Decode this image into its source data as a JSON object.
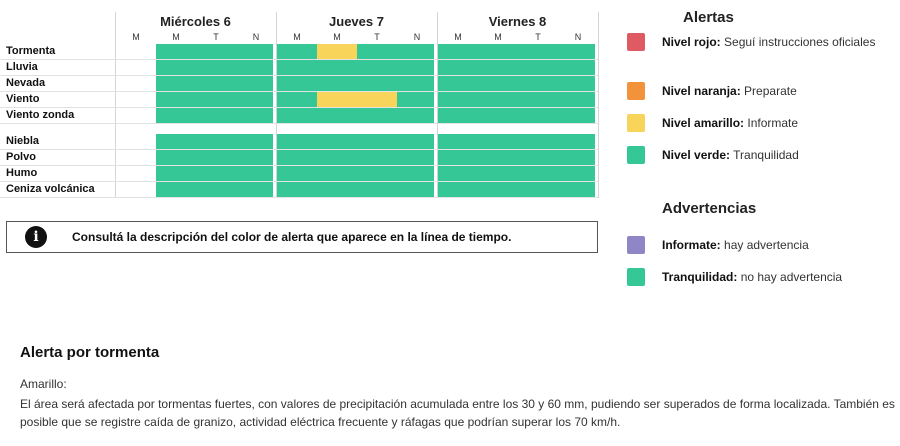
{
  "colors": {
    "red": "#e05a63",
    "orange": "#f2923a",
    "yellow": "#f9d45a",
    "green": "#35c795",
    "purple": "#8e86c6"
  },
  "timeline": {
    "days": [
      {
        "label": "Miércoles 6",
        "slots": [
          "M",
          "M",
          "T",
          "N"
        ]
      },
      {
        "label": "Jueves 7",
        "slots": [
          "M",
          "M",
          "T",
          "N"
        ]
      },
      {
        "label": "Viernes 8",
        "slots": [
          "M",
          "M",
          "T",
          "N"
        ]
      }
    ],
    "rows": [
      {
        "label": "Tormenta",
        "levels": [
          null,
          "green",
          "green",
          "green",
          "green",
          "yellow",
          "green",
          "green",
          "green",
          "green",
          "green",
          "green"
        ]
      },
      {
        "label": "Lluvia",
        "levels": [
          null,
          "green",
          "green",
          "green",
          "green",
          "green",
          "green",
          "green",
          "green",
          "green",
          "green",
          "green"
        ]
      },
      {
        "label": "Nevada",
        "levels": [
          null,
          "green",
          "green",
          "green",
          "green",
          "green",
          "green",
          "green",
          "green",
          "green",
          "green",
          "green"
        ]
      },
      {
        "label": "Viento",
        "levels": [
          null,
          "green",
          "green",
          "green",
          "green",
          "yellow",
          "yellow",
          "green",
          "green",
          "green",
          "green",
          "green"
        ]
      },
      {
        "label": "Viento zonda",
        "levels": [
          null,
          "green",
          "green",
          "green",
          "green",
          "green",
          "green",
          "green",
          "green",
          "green",
          "green",
          "green"
        ]
      },
      {
        "label": "Niebla",
        "levels": [
          null,
          "green",
          "green",
          "green",
          "green",
          "green",
          "green",
          "green",
          "green",
          "green",
          "green",
          "green"
        ]
      },
      {
        "label": "Polvo",
        "levels": [
          null,
          "green",
          "green",
          "green",
          "green",
          "green",
          "green",
          "green",
          "green",
          "green",
          "green",
          "green"
        ]
      },
      {
        "label": "Humo",
        "levels": [
          null,
          "green",
          "green",
          "green",
          "green",
          "green",
          "green",
          "green",
          "green",
          "green",
          "green",
          "green"
        ]
      },
      {
        "label": "Ceniza volcánica",
        "levels": [
          null,
          "green",
          "green",
          "green",
          "green",
          "green",
          "green",
          "green",
          "green",
          "green",
          "green",
          "green"
        ]
      }
    ]
  },
  "info_box": {
    "icon": "info-icon",
    "text": "Consultá la descripción del color de alerta que aparece en la línea de tiempo."
  },
  "legend": {
    "alerts_title": "Alertas",
    "alerts": [
      {
        "name": "Nivel rojo:",
        "description": "Seguí instrucciones oficiales",
        "color": "red"
      },
      {
        "name": "Nivel naranja:",
        "description": "Preparate",
        "color": "orange"
      },
      {
        "name": "Nivel amarillo:",
        "description": "Informate",
        "color": "yellow"
      },
      {
        "name": "Nivel verde:",
        "description": "Tranquilidad",
        "color": "green"
      }
    ],
    "warnings_title": "Advertencias",
    "warnings": [
      {
        "name": "Informate:",
        "description": "hay advertencia",
        "color": "purple"
      },
      {
        "name": "Tranquilidad:",
        "description": "no hay advertencia",
        "color": "green"
      }
    ]
  },
  "description": {
    "title": "Alerta por tormenta",
    "level": "Amarillo:",
    "body": "El área será afectada por tormentas fuertes, con valores de precipitación acumulada entre los 30 y 60 mm, pudiendo ser superados de forma localizada. También es posible que se registre caída de granizo, actividad eléctrica frecuente y ráfagas que podrían superar los 70 km/h."
  }
}
